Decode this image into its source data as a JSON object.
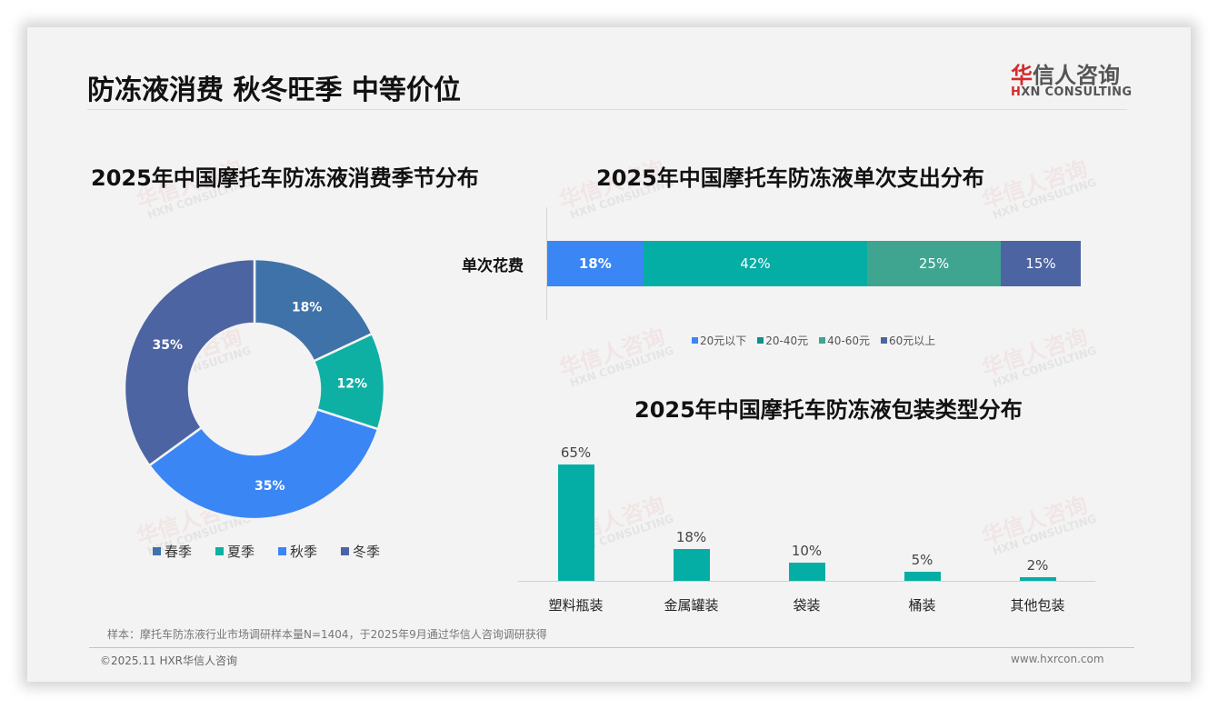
{
  "header": {
    "title": "防冻液消费 秋冬旺季 中等价位",
    "logo_cn_first": "华",
    "logo_cn_rest": "信人咨询",
    "logo_en_first": "H",
    "logo_en_rest": "XN CONSULTING"
  },
  "watermark": {
    "cn": "华信人咨询",
    "en": "HXN CONSULTING"
  },
  "colors": {
    "spring": "#3f72a8",
    "summer": "#0fb0a4",
    "autumn": "#3a86f5",
    "winter": "#4d64a2",
    "teal_bar": "#05aea5",
    "seg_40_60": "#3fa590"
  },
  "chart_data": [
    {
      "type": "pie",
      "variant": "donut",
      "title": "2025年中国摩托车防冻液消费季节分布",
      "categories": [
        "春季",
        "夏季",
        "秋季",
        "冬季"
      ],
      "values": [
        18,
        12,
        35,
        35
      ],
      "labels": [
        "18%",
        "12%",
        "35%",
        "35%"
      ],
      "colors": [
        "#3f72a8",
        "#0fb0a4",
        "#3a86f5",
        "#4d64a2"
      ],
      "legend_position": "bottom"
    },
    {
      "type": "bar",
      "orientation": "horizontal",
      "stacked": true,
      "title": "2025年中国摩托车防冻液单次支出分布",
      "categories": [
        "单次花费"
      ],
      "series": [
        {
          "name": "20元以下",
          "values": [
            18
          ],
          "label": "18%",
          "color": "#3a86f5"
        },
        {
          "name": "20-40元",
          "values": [
            42
          ],
          "label": "42%",
          "color": "#05aea5"
        },
        {
          "name": "40-60元",
          "values": [
            25
          ],
          "label": "25%",
          "color": "#3fa590"
        },
        {
          "name": "60元以上",
          "values": [
            15
          ],
          "label": "15%",
          "color": "#4d64a2"
        }
      ],
      "xlim": [
        0,
        100
      ],
      "legend_position": "bottom"
    },
    {
      "type": "bar",
      "title": "2025年中国摩托车防冻液包装类型分布",
      "categories": [
        "塑料瓶装",
        "金属罐装",
        "袋装",
        "桶装",
        "其他包装"
      ],
      "values": [
        65,
        18,
        10,
        5,
        2
      ],
      "labels": [
        "65%",
        "18%",
        "10%",
        "5%",
        "2%"
      ],
      "color": "#05aea5",
      "grid": false,
      "ylim": [
        0,
        65
      ]
    }
  ],
  "footer": {
    "note": "样本：摩托车防冻液行业市场调研样本量N=1404，于2025年9月通过华信人咨询调研获得",
    "copyright": "©2025.11 HXR华信人咨询",
    "website": "www.hxrcon.com"
  }
}
